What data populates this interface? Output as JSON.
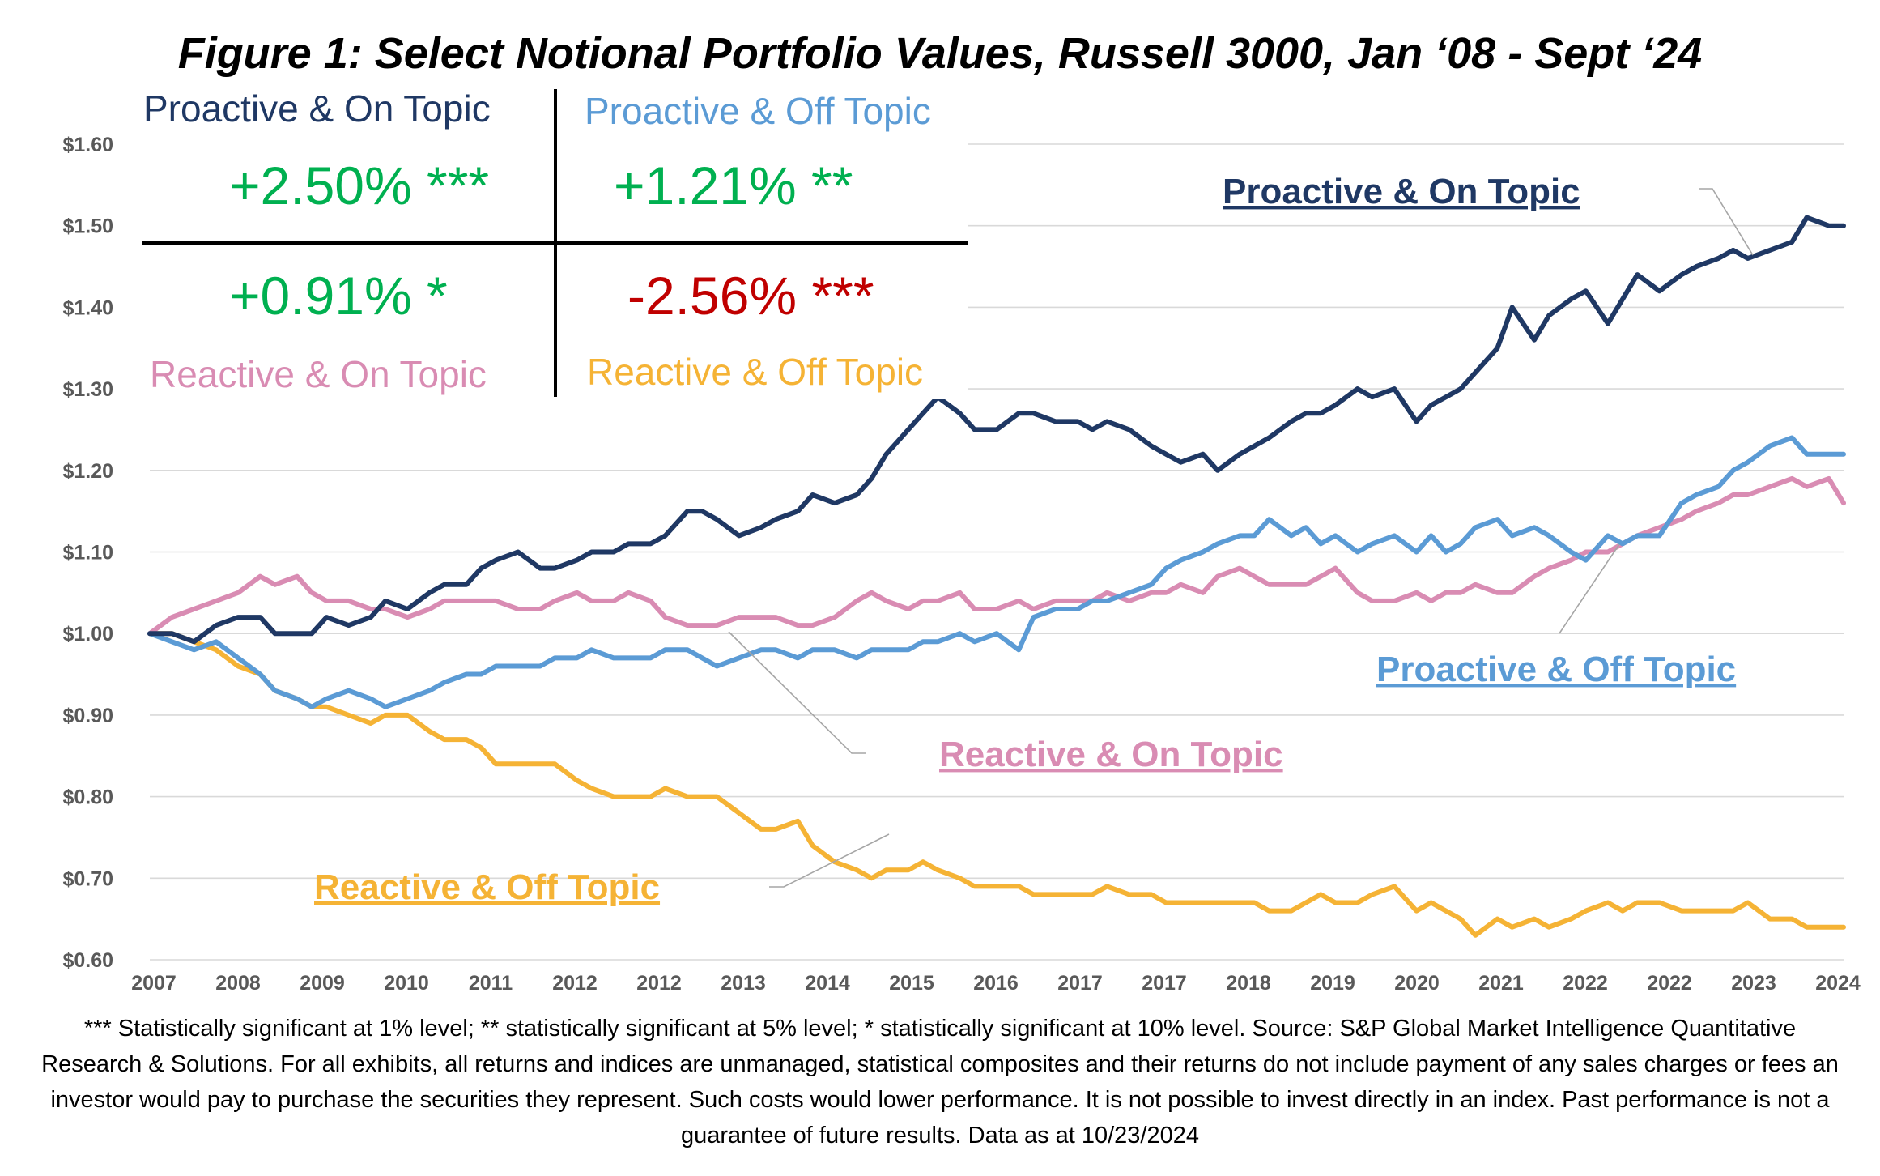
{
  "figure_title": "Figure 1: Select Notional Portfolio Values, Russell 3000, Jan ‘08 - Sept ‘24",
  "quadrant": {
    "proactive_on": {
      "label": "Proactive & On Topic",
      "value": "+2.50% ***",
      "label_color": "#1f3864",
      "value_color": "#00b050"
    },
    "proactive_off": {
      "label": "Proactive & Off Topic",
      "value": "+1.21% **",
      "label_color": "#5b9bd5",
      "value_color": "#00b050"
    },
    "reactive_on": {
      "label": "Reactive & On Topic",
      "value": "+0.91% *",
      "label_color": "#d98cb3",
      "value_color": "#00b050"
    },
    "reactive_off": {
      "label": "Reactive & Off Topic",
      "value": "-2.56% ***",
      "label_color": "#f5b335",
      "value_color": "#c00000"
    }
  },
  "footnote": "*** Statistically significant at 1% level; ** statistically significant at 5% level; * statistically significant at 10% level. Source: S&P Global Market Intelligence Quantitative Research & Solutions. For all exhibits, all returns and indices are unmanaged, statistical composites and their returns do not include payment of any sales charges or fees an investor would pay to purchase the securities they represent. Such costs would lower performance. It is not possible to invest directly in an index. Past performance is not a guarantee of future results. Data as at 10/23/2024",
  "chart_data": {
    "type": "line",
    "title": "Figure 1: Select Notional Portfolio Values, Russell 3000, Jan ‘08 - Sept ‘24",
    "xlabel": "",
    "ylabel": "",
    "ylim": [
      0.6,
      1.6
    ],
    "xlim": [
      0,
      23
    ],
    "y_ticks": [
      "$0.60",
      "$0.70",
      "$0.80",
      "$0.90",
      "$1.00",
      "$1.10",
      "$1.20",
      "$1.30",
      "$1.40",
      "$1.50",
      "$1.60"
    ],
    "y_tick_values": [
      0.6,
      0.7,
      0.8,
      0.9,
      1.0,
      1.1,
      1.2,
      1.3,
      1.4,
      1.5,
      1.6
    ],
    "x_tick_labels": [
      "2007",
      "2008",
      "2009",
      "2010",
      "2011",
      "2012",
      "2012",
      "2013",
      "2014",
      "2015",
      "2016",
      "2017",
      "2017",
      "2018",
      "2019",
      "2020",
      "2021",
      "2022",
      "2022",
      "2023",
      "2024"
    ],
    "grid": true,
    "series": [
      {
        "name": "Proactive & On Topic",
        "color": "#1f3864",
        "x": [
          0,
          0.3,
          0.6,
          0.9,
          1.2,
          1.5,
          1.7,
          2.0,
          2.2,
          2.4,
          2.7,
          3.0,
          3.2,
          3.5,
          3.8,
          4.0,
          4.3,
          4.5,
          4.7,
          5.0,
          5.3,
          5.5,
          5.8,
          6.0,
          6.3,
          6.5,
          6.8,
          7.0,
          7.3,
          7.5,
          7.7,
          8.0,
          8.3,
          8.5,
          8.8,
          9.0,
          9.3,
          9.6,
          9.8,
          10.0,
          10.3,
          10.5,
          10.7,
          11.0,
          11.2,
          11.5,
          11.8,
          12.0,
          12.3,
          12.6,
          12.8,
          13.0,
          13.3,
          13.6,
          13.8,
          14.0,
          14.3,
          14.5,
          14.8,
          15.0,
          15.2,
          15.5,
          15.7,
          15.9,
          16.1,
          16.4,
          16.6,
          16.9,
          17.2,
          17.4,
          17.6,
          17.8,
          18.0,
          18.3,
          18.5,
          18.8,
          19.0,
          19.3,
          19.5,
          19.8,
          20.0,
          20.2,
          20.5,
          20.8,
          21.0,
          21.3,
          21.5,
          21.7,
          22.0,
          22.3,
          22.5,
          22.8,
          23.0
        ],
        "values": [
          1.0,
          1.0,
          0.99,
          1.01,
          1.02,
          1.02,
          1.0,
          1.0,
          1.0,
          1.02,
          1.01,
          1.02,
          1.04,
          1.03,
          1.05,
          1.06,
          1.06,
          1.08,
          1.09,
          1.1,
          1.08,
          1.08,
          1.09,
          1.1,
          1.1,
          1.11,
          1.11,
          1.12,
          1.15,
          1.15,
          1.14,
          1.12,
          1.13,
          1.14,
          1.15,
          1.17,
          1.16,
          1.17,
          1.19,
          1.22,
          1.25,
          1.27,
          1.29,
          1.27,
          1.25,
          1.25,
          1.27,
          1.27,
          1.26,
          1.26,
          1.25,
          1.26,
          1.25,
          1.23,
          1.22,
          1.21,
          1.22,
          1.2,
          1.22,
          1.23,
          1.24,
          1.26,
          1.27,
          1.27,
          1.28,
          1.3,
          1.29,
          1.3,
          1.26,
          1.28,
          1.29,
          1.3,
          1.32,
          1.35,
          1.4,
          1.36,
          1.39,
          1.41,
          1.42,
          1.38,
          1.41,
          1.44,
          1.42,
          1.44,
          1.45,
          1.46,
          1.47,
          1.46,
          1.47,
          1.48,
          1.51,
          1.5,
          1.5
        ]
      },
      {
        "name": "Proactive & Off Topic",
        "color": "#5b9bd5",
        "x": [
          0,
          0.3,
          0.6,
          0.9,
          1.2,
          1.5,
          1.7,
          2.0,
          2.2,
          2.4,
          2.7,
          3.0,
          3.2,
          3.5,
          3.8,
          4.0,
          4.3,
          4.5,
          4.7,
          5.0,
          5.3,
          5.5,
          5.8,
          6.0,
          6.3,
          6.5,
          6.8,
          7.0,
          7.3,
          7.5,
          7.7,
          8.0,
          8.3,
          8.5,
          8.8,
          9.0,
          9.3,
          9.6,
          9.8,
          10.0,
          10.3,
          10.5,
          10.7,
          11.0,
          11.2,
          11.5,
          11.8,
          12.0,
          12.3,
          12.6,
          12.8,
          13.0,
          13.3,
          13.6,
          13.8,
          14.0,
          14.3,
          14.5,
          14.8,
          15.0,
          15.2,
          15.5,
          15.7,
          15.9,
          16.1,
          16.4,
          16.6,
          16.9,
          17.2,
          17.4,
          17.6,
          17.8,
          18.0,
          18.3,
          18.5,
          18.8,
          19.0,
          19.3,
          19.5,
          19.8,
          20.0,
          20.2,
          20.5,
          20.8,
          21.0,
          21.3,
          21.5,
          21.7,
          22.0,
          22.3,
          22.5,
          22.8,
          23.0
        ],
        "values": [
          1.0,
          0.99,
          0.98,
          0.99,
          0.97,
          0.95,
          0.93,
          0.92,
          0.91,
          0.92,
          0.93,
          0.92,
          0.91,
          0.92,
          0.93,
          0.94,
          0.95,
          0.95,
          0.96,
          0.96,
          0.96,
          0.97,
          0.97,
          0.98,
          0.97,
          0.97,
          0.97,
          0.98,
          0.98,
          0.97,
          0.96,
          0.97,
          0.98,
          0.98,
          0.97,
          0.98,
          0.98,
          0.97,
          0.98,
          0.98,
          0.98,
          0.99,
          0.99,
          1.0,
          0.99,
          1.0,
          0.98,
          1.02,
          1.03,
          1.03,
          1.04,
          1.04,
          1.05,
          1.06,
          1.08,
          1.09,
          1.1,
          1.11,
          1.12,
          1.12,
          1.14,
          1.12,
          1.13,
          1.11,
          1.12,
          1.1,
          1.11,
          1.12,
          1.1,
          1.12,
          1.1,
          1.11,
          1.13,
          1.14,
          1.12,
          1.13,
          1.12,
          1.1,
          1.09,
          1.12,
          1.11,
          1.12,
          1.12,
          1.16,
          1.17,
          1.18,
          1.2,
          1.21,
          1.23,
          1.24,
          1.22,
          1.22,
          1.22
        ]
      },
      {
        "name": "Reactive & On Topic",
        "color": "#d98cb3",
        "x": [
          0,
          0.3,
          0.6,
          0.9,
          1.2,
          1.5,
          1.7,
          2.0,
          2.2,
          2.4,
          2.7,
          3.0,
          3.2,
          3.5,
          3.8,
          4.0,
          4.3,
          4.5,
          4.7,
          5.0,
          5.3,
          5.5,
          5.8,
          6.0,
          6.3,
          6.5,
          6.8,
          7.0,
          7.3,
          7.5,
          7.7,
          8.0,
          8.3,
          8.5,
          8.8,
          9.0,
          9.3,
          9.6,
          9.8,
          10.0,
          10.3,
          10.5,
          10.7,
          11.0,
          11.2,
          11.5,
          11.8,
          12.0,
          12.3,
          12.6,
          12.8,
          13.0,
          13.3,
          13.6,
          13.8,
          14.0,
          14.3,
          14.5,
          14.8,
          15.0,
          15.2,
          15.5,
          15.7,
          15.9,
          16.1,
          16.4,
          16.6,
          16.9,
          17.2,
          17.4,
          17.6,
          17.8,
          18.0,
          18.3,
          18.5,
          18.8,
          19.0,
          19.3,
          19.5,
          19.8,
          20.0,
          20.2,
          20.5,
          20.8,
          21.0,
          21.3,
          21.5,
          21.7,
          22.0,
          22.3,
          22.5,
          22.8,
          23.0
        ],
        "values": [
          1.0,
          1.02,
          1.03,
          1.04,
          1.05,
          1.07,
          1.06,
          1.07,
          1.05,
          1.04,
          1.04,
          1.03,
          1.03,
          1.02,
          1.03,
          1.04,
          1.04,
          1.04,
          1.04,
          1.03,
          1.03,
          1.04,
          1.05,
          1.04,
          1.04,
          1.05,
          1.04,
          1.02,
          1.01,
          1.01,
          1.01,
          1.02,
          1.02,
          1.02,
          1.01,
          1.01,
          1.02,
          1.04,
          1.05,
          1.04,
          1.03,
          1.04,
          1.04,
          1.05,
          1.03,
          1.03,
          1.04,
          1.03,
          1.04,
          1.04,
          1.04,
          1.05,
          1.04,
          1.05,
          1.05,
          1.06,
          1.05,
          1.07,
          1.08,
          1.07,
          1.06,
          1.06,
          1.06,
          1.07,
          1.08,
          1.05,
          1.04,
          1.04,
          1.05,
          1.04,
          1.05,
          1.05,
          1.06,
          1.05,
          1.05,
          1.07,
          1.08,
          1.09,
          1.1,
          1.1,
          1.11,
          1.12,
          1.13,
          1.14,
          1.15,
          1.16,
          1.17,
          1.17,
          1.18,
          1.19,
          1.18,
          1.19,
          1.16
        ]
      },
      {
        "name": "Reactive & Off Topic",
        "color": "#f5b335",
        "x": [
          0,
          0.3,
          0.6,
          0.9,
          1.2,
          1.5,
          1.7,
          2.0,
          2.2,
          2.4,
          2.7,
          3.0,
          3.2,
          3.5,
          3.8,
          4.0,
          4.3,
          4.5,
          4.7,
          5.0,
          5.3,
          5.5,
          5.8,
          6.0,
          6.3,
          6.5,
          6.8,
          7.0,
          7.3,
          7.5,
          7.7,
          8.0,
          8.3,
          8.5,
          8.8,
          9.0,
          9.3,
          9.6,
          9.8,
          10.0,
          10.3,
          10.5,
          10.7,
          11.0,
          11.2,
          11.5,
          11.8,
          12.0,
          12.3,
          12.6,
          12.8,
          13.0,
          13.3,
          13.6,
          13.8,
          14.0,
          14.3,
          14.5,
          14.8,
          15.0,
          15.2,
          15.5,
          15.7,
          15.9,
          16.1,
          16.4,
          16.6,
          16.9,
          17.2,
          17.4,
          17.6,
          17.8,
          18.0,
          18.3,
          18.5,
          18.8,
          19.0,
          19.3,
          19.5,
          19.8,
          20.0,
          20.2,
          20.5,
          20.8,
          21.0,
          21.3,
          21.5,
          21.7,
          22.0,
          22.3,
          22.5,
          22.8,
          23.0
        ],
        "values": [
          1.0,
          1.0,
          0.99,
          0.98,
          0.96,
          0.95,
          0.93,
          0.92,
          0.91,
          0.91,
          0.9,
          0.89,
          0.9,
          0.9,
          0.88,
          0.87,
          0.87,
          0.86,
          0.84,
          0.84,
          0.84,
          0.84,
          0.82,
          0.81,
          0.8,
          0.8,
          0.8,
          0.81,
          0.8,
          0.8,
          0.8,
          0.78,
          0.76,
          0.76,
          0.77,
          0.74,
          0.72,
          0.71,
          0.7,
          0.71,
          0.71,
          0.72,
          0.71,
          0.7,
          0.69,
          0.69,
          0.69,
          0.68,
          0.68,
          0.68,
          0.68,
          0.69,
          0.68,
          0.68,
          0.67,
          0.67,
          0.67,
          0.67,
          0.67,
          0.67,
          0.66,
          0.66,
          0.67,
          0.68,
          0.67,
          0.67,
          0.68,
          0.69,
          0.66,
          0.67,
          0.66,
          0.65,
          0.63,
          0.65,
          0.64,
          0.65,
          0.64,
          0.65,
          0.66,
          0.67,
          0.66,
          0.67,
          0.67,
          0.66,
          0.66,
          0.66,
          0.66,
          0.67,
          0.65,
          0.65,
          0.64,
          0.64,
          0.64
        ]
      }
    ],
    "annotations": [
      "Proactive & On Topic",
      "Proactive & Off Topic",
      "Reactive & On Topic",
      "Reactive & Off Topic"
    ]
  }
}
